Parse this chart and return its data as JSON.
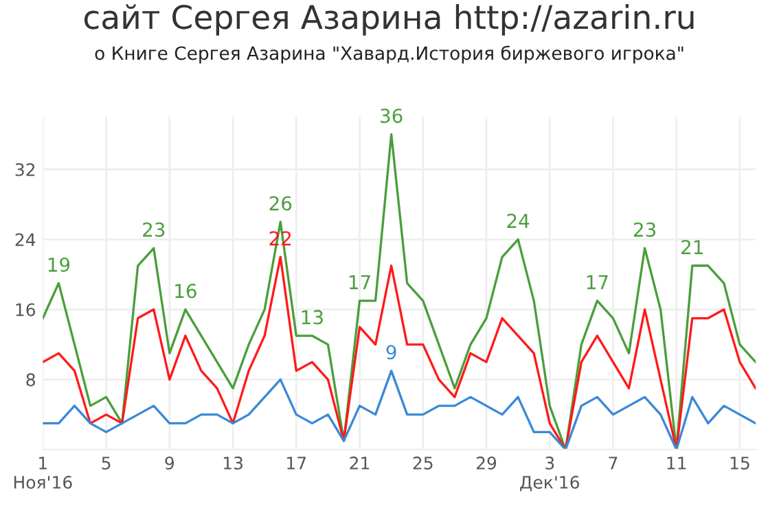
{
  "chart_data": {
    "type": "line",
    "title": "сайт Сергея Азарина http://azarin.ru",
    "subtitle": "о Книге Сергея Азарина \"Хавард.История биржевого игрока\"",
    "x": [
      "2016-11-01",
      "2016-11-02",
      "2016-11-03",
      "2016-11-04",
      "2016-11-05",
      "2016-11-06",
      "2016-11-07",
      "2016-11-08",
      "2016-11-09",
      "2016-11-10",
      "2016-11-11",
      "2016-11-12",
      "2016-11-13",
      "2016-11-14",
      "2016-11-15",
      "2016-11-16",
      "2016-11-17",
      "2016-11-18",
      "2016-11-19",
      "2016-11-20",
      "2016-11-21",
      "2016-11-22",
      "2016-11-23",
      "2016-11-24",
      "2016-11-25",
      "2016-11-26",
      "2016-11-27",
      "2016-11-28",
      "2016-11-29",
      "2016-11-30",
      "2016-12-01",
      "2016-12-02",
      "2016-12-03",
      "2016-12-04",
      "2016-12-05",
      "2016-12-06",
      "2016-12-07",
      "2016-12-08",
      "2016-12-09",
      "2016-12-10",
      "2016-12-11",
      "2016-12-12",
      "2016-12-13",
      "2016-12-14",
      "2016-12-15",
      "2016-12-16"
    ],
    "series": [
      {
        "color": "#4a9e3c",
        "values": [
          15,
          19,
          12,
          5,
          6,
          3,
          21,
          23,
          11,
          16,
          13,
          10,
          7,
          12,
          16,
          26,
          13,
          13,
          12,
          1,
          17,
          17,
          36,
          19,
          17,
          12,
          7,
          12,
          15,
          22,
          24,
          17,
          5,
          0,
          12,
          17,
          15,
          11,
          23,
          16,
          0,
          21,
          21,
          19,
          12,
          10
        ]
      },
      {
        "color": "#ff1a1a",
        "values": [
          10,
          11,
          9,
          3,
          4,
          3,
          15,
          16,
          8,
          13,
          9,
          7,
          3,
          9,
          13,
          22,
          9,
          10,
          8,
          1,
          14,
          12,
          21,
          12,
          12,
          8,
          6,
          11,
          10,
          15,
          13,
          11,
          3,
          0,
          10,
          13,
          10,
          7,
          16,
          8,
          0,
          15,
          15,
          16,
          10,
          7
        ]
      },
      {
        "color": "#3a88d8",
        "values": [
          3,
          3,
          5,
          3,
          2,
          3,
          4,
          5,
          3,
          3,
          4,
          4,
          3,
          4,
          6,
          8,
          4,
          3,
          4,
          1,
          5,
          4,
          9,
          4,
          4,
          5,
          5,
          6,
          5,
          4,
          6,
          2,
          2,
          0,
          5,
          6,
          4,
          5,
          6,
          4,
          0,
          6,
          3,
          5,
          4,
          3
        ]
      }
    ],
    "annotations": [
      {
        "text": "19",
        "x": "2016-11-02",
        "y": 19
      },
      {
        "text": "23",
        "x": "2016-11-08",
        "y": 23
      },
      {
        "text": "16",
        "x": "2016-11-10",
        "y": 16
      },
      {
        "text": "26",
        "x": "2016-11-16",
        "y": 26
      },
      {
        "text": "22",
        "x": "2016-11-16",
        "y": 22
      },
      {
        "text": "13",
        "x": "2016-11-18",
        "y": 13
      },
      {
        "text": "17",
        "x": "2016-11-21",
        "y": 17
      },
      {
        "text": "36",
        "x": "2016-11-23",
        "y": 36
      },
      {
        "text": "9",
        "x": "2016-11-23",
        "y": 9
      },
      {
        "text": "24",
        "x": "2016-12-01",
        "y": 24
      },
      {
        "text": "17",
        "x": "2016-12-06",
        "y": 17
      },
      {
        "text": "23",
        "x": "2016-12-09",
        "y": 23
      },
      {
        "text": "21",
        "x": "2016-12-12",
        "y": 21
      }
    ],
    "xlim": [
      "2016-11-01",
      "2016-12-16"
    ],
    "xticks": [
      {
        "value": "2016-11-01",
        "label": "1\nНоя'16"
      },
      {
        "value": "2016-11-05",
        "label": "5"
      },
      {
        "value": "2016-11-09",
        "label": "9"
      },
      {
        "value": "2016-11-13",
        "label": "13"
      },
      {
        "value": "2016-11-17",
        "label": "17"
      },
      {
        "value": "2016-11-21",
        "label": "21"
      },
      {
        "value": "2016-11-25",
        "label": "25"
      },
      {
        "value": "2016-11-29",
        "label": "29"
      },
      {
        "value": "2016-12-03",
        "label": "3\nДек'16"
      },
      {
        "value": "2016-12-07",
        "label": "7"
      },
      {
        "value": "2016-12-11",
        "label": "11"
      },
      {
        "value": "2016-12-15",
        "label": "15"
      }
    ],
    "ylim": [
      0,
      38
    ],
    "yticks": [
      8,
      16,
      24,
      32
    ],
    "grid": true,
    "marker": "none",
    "line_style": "solid"
  }
}
